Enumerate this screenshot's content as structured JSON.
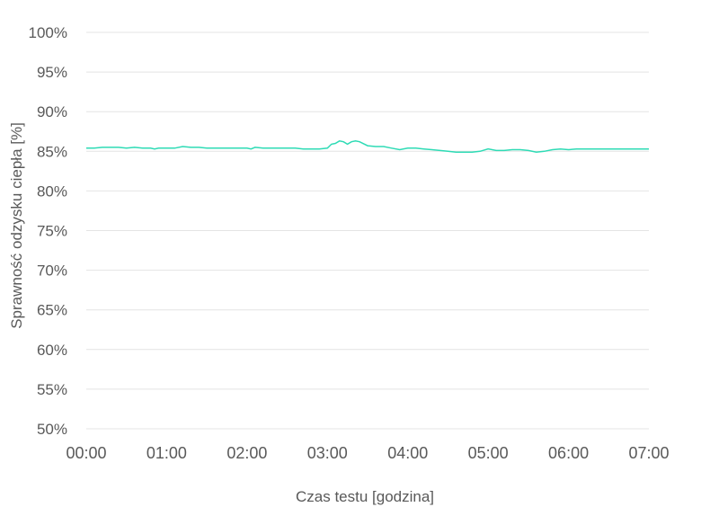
{
  "chart_data": {
    "type": "line",
    "xlabel": "Czas testu [godzina]",
    "ylabel": "Sprawność odzysku ciepła [%]",
    "x_ticks": [
      "00:00",
      "01:00",
      "02:00",
      "03:00",
      "04:00",
      "05:00",
      "06:00",
      "07:00"
    ],
    "y_ticks": [
      "100%",
      "95%",
      "90%",
      "85%",
      "80%",
      "75%",
      "70%",
      "65%",
      "60%",
      "55%",
      "50%"
    ],
    "xlim": [
      0,
      7
    ],
    "ylim": [
      50,
      100
    ],
    "grid": "horizontal",
    "legend": "none",
    "series_color": "#2edbb5",
    "grid_color": "#e4e4e4",
    "series": [
      {
        "x": [
          0.0,
          0.1,
          0.2,
          0.25,
          0.3,
          0.4,
          0.5,
          0.6,
          0.7,
          0.8,
          0.85,
          0.9,
          1.0,
          1.1,
          1.2,
          1.3,
          1.4,
          1.5,
          1.6,
          1.7,
          1.8,
          1.9,
          2.0,
          2.05,
          2.1,
          2.2,
          2.3,
          2.4,
          2.5,
          2.6,
          2.7,
          2.8,
          2.9,
          3.0,
          3.05,
          3.1,
          3.15,
          3.2,
          3.25,
          3.3,
          3.35,
          3.4,
          3.5,
          3.6,
          3.7,
          3.8,
          3.9,
          4.0,
          4.1,
          4.2,
          4.3,
          4.4,
          4.5,
          4.6,
          4.7,
          4.8,
          4.9,
          5.0,
          5.1,
          5.2,
          5.3,
          5.4,
          5.5,
          5.6,
          5.7,
          5.8,
          5.9,
          6.0,
          6.1,
          6.2,
          6.3,
          6.4,
          6.5,
          6.6,
          6.7,
          6.8,
          6.9,
          7.0
        ],
        "y": [
          85.4,
          85.4,
          85.5,
          85.5,
          85.5,
          85.5,
          85.4,
          85.5,
          85.4,
          85.4,
          85.3,
          85.4,
          85.4,
          85.4,
          85.6,
          85.5,
          85.5,
          85.4,
          85.4,
          85.4,
          85.4,
          85.4,
          85.4,
          85.3,
          85.5,
          85.4,
          85.4,
          85.4,
          85.4,
          85.4,
          85.3,
          85.3,
          85.3,
          85.4,
          85.9,
          86.0,
          86.3,
          86.2,
          85.9,
          86.2,
          86.3,
          86.2,
          85.7,
          85.6,
          85.6,
          85.4,
          85.2,
          85.4,
          85.4,
          85.3,
          85.2,
          85.1,
          85.0,
          84.9,
          84.9,
          84.9,
          85.0,
          85.3,
          85.1,
          85.1,
          85.2,
          85.2,
          85.1,
          84.9,
          85.0,
          85.2,
          85.3,
          85.2,
          85.3,
          85.3,
          85.3,
          85.3,
          85.3,
          85.3,
          85.3,
          85.3,
          85.3,
          85.3
        ]
      }
    ]
  }
}
